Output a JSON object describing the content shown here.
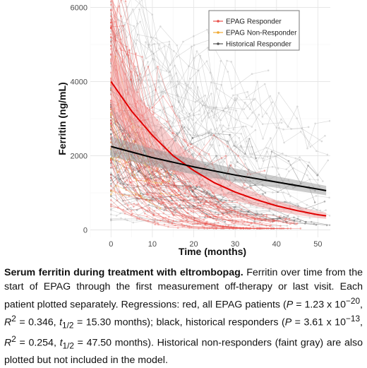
{
  "chart_data": {
    "type": "scatter",
    "xlabel": "Time (months)",
    "ylabel": "Ferritin (ng/mL)",
    "xlim": [
      -5,
      53
    ],
    "ylim": [
      -200,
      6200
    ],
    "x_ticks": [
      0,
      10,
      20,
      30,
      40,
      50
    ],
    "y_ticks": [
      0,
      2000,
      4000,
      6000
    ],
    "grid": true,
    "legend_position": "top-right",
    "series": [
      {
        "name": "EPAG Responder",
        "color": "#e8504a"
      },
      {
        "name": "EPAG Non-Responder",
        "color": "#f0a830"
      },
      {
        "name": "Historical Responder",
        "color": "#555555"
      }
    ],
    "regressions": [
      {
        "color": "#e00000",
        "band_color": "#f4a0a0",
        "x": [
          0,
          5,
          10,
          15,
          20,
          25,
          30,
          35,
          40,
          45,
          50,
          52
        ],
        "y": [
          4000,
          3200,
          2550,
          2000,
          1600,
          1270,
          1020,
          820,
          650,
          520,
          410,
          380
        ]
      },
      {
        "color": "#000000",
        "band_color": "#999999",
        "x": [
          0,
          10,
          20,
          30,
          40,
          50,
          52
        ],
        "y": [
          2250,
          1950,
          1700,
          1480,
          1290,
          1100,
          1060
        ]
      }
    ]
  },
  "caption": {
    "bold": "Serum ferritin during treatment with eltrombopag.",
    "t1": " Ferritin over time from the start of EPAG through the first measurement off-therapy or last visit. Each patient plotted separately. Regressions: red, all EPAG patients (",
    "p1": "P",
    "t2": " = 1.23 x 10",
    "e1": "−20",
    "t3": ", ",
    "r1": "R",
    "s1": "2",
    "t4": " = 0.346, ",
    "tv1": "t",
    "h1": "1/2",
    "t5": " = 15.30 months); black, historical responders (",
    "p2": "P",
    "t6": " = 3.61 x 10",
    "e2": "−13",
    "t7": ", ",
    "r2": "R",
    "s2": "2",
    "t8": " = 0.254, ",
    "tv2": "t",
    "h2": "1/2",
    "t9": " = 47.50 months). Historical non-responders (faint gray) are also plotted but not included in the model."
  }
}
